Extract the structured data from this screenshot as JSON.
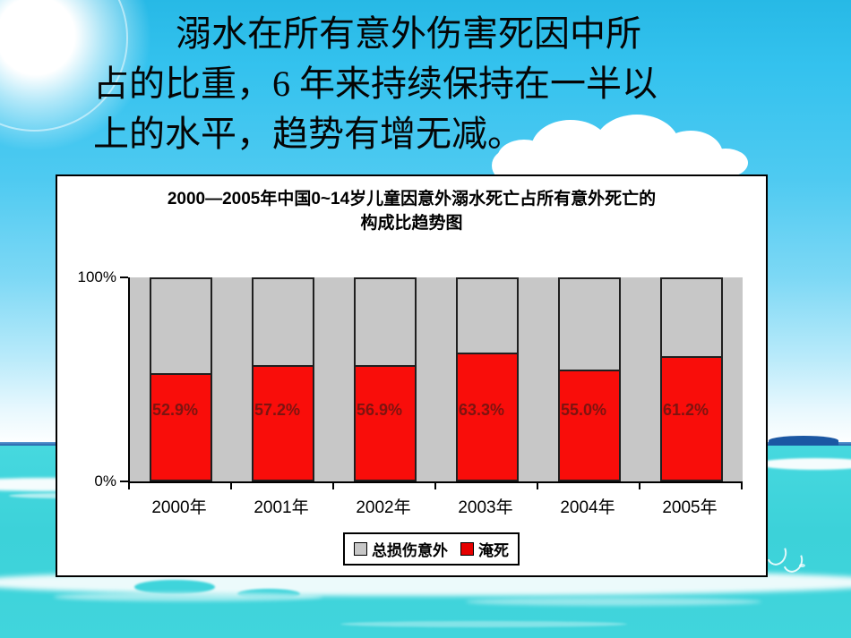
{
  "slide": {
    "title_lines": [
      "溺水在所有意外伤害死因中所",
      "占的比重，6 年来持续保持在一半以",
      "上的水平，趋势有增无减。"
    ]
  },
  "chart": {
    "title_lines": [
      "2000—2005年中国0~14岁儿童因意外溺水死亡占所有意外死亡的",
      "构成比趋势图"
    ],
    "y_axis": {
      "top_label": "100%",
      "bottom_label": "0%"
    }
  },
  "chart_data": {
    "type": "bar",
    "subtype": "stacked-100-percent",
    "title": "2000—2005年中国0~14岁儿童因意外溺水死亡占所有意外死亡的构成比趋势图",
    "categories": [
      "2000年",
      "2001年",
      "2002年",
      "2003年",
      "2004年",
      "2005年"
    ],
    "series": [
      {
        "name": "淹死",
        "color": "#f90d0a",
        "values": [
          52.9,
          57.2,
          56.9,
          63.3,
          55.0,
          61.2
        ],
        "labels": [
          "52.9%",
          "57.2%",
          "56.9%",
          "63.3%",
          "55.0%",
          "61.2%"
        ]
      },
      {
        "name": "总损伤意外",
        "color": "#c7c7c7",
        "values": [
          47.1,
          42.8,
          43.1,
          36.7,
          45.0,
          38.8
        ]
      }
    ],
    "xlabel": "",
    "ylabel": "",
    "ylim": [
      0,
      100
    ],
    "yticks": [
      "0%",
      "100%"
    ],
    "grid": false,
    "legend_position": "bottom",
    "data_label_color": "#7d1410"
  },
  "colors": {
    "sky_blue": "#35c3ee",
    "sea_turquoise": "#40d4dc",
    "horizon_dark_blue": "#1b57a3",
    "chart_background": "#ffffff",
    "plot_background": "#c7c7c7",
    "bar_red": "#f90d0a",
    "bar_gray": "#c7c7c7",
    "value_label_red": "#7d1410",
    "text_black": "#000000"
  }
}
